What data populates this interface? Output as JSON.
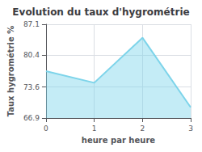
{
  "chart_data": {
    "type": "area",
    "title": "Evolution du taux d'hygrométrie",
    "xlabel": "heure par heure",
    "ylabel": "Taux hygrométrie %",
    "x": [
      0,
      1,
      2,
      3
    ],
    "values": [
      77.0,
      74.5,
      84.2,
      69.2
    ],
    "xlim": [
      0,
      3
    ],
    "xticks": [
      0,
      1,
      2,
      3
    ],
    "ylim": [
      66.9,
      87.1
    ],
    "yticks": [
      66.9,
      73.6,
      80.4,
      87.1
    ],
    "color": "#7dd4ea",
    "grid": true
  }
}
